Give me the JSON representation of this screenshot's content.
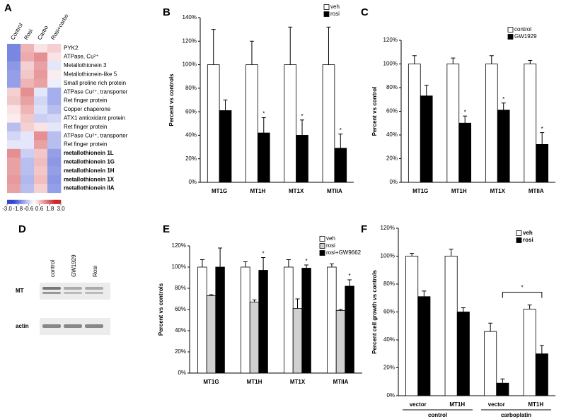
{
  "chart_data": [
    {
      "type": "heatmap",
      "panel": "A",
      "columns": [
        "Control",
        "Rosi",
        "Carbo",
        "Rosi+carbo"
      ],
      "rows": [
        "PYK2",
        "ATPase, Cu²⁺",
        "Metallothionein 3",
        "Metallothionein-like 5",
        "Small proline rich protein",
        "ATPase Cu²⁺, transporter",
        "Ret finger protein",
        "Copper chaperone",
        "ATX1 antioxidant protein",
        "Ret finger protein",
        "ATPase Cu²⁺, transporter",
        "Ret finger protein",
        "metallothionein 1L",
        "metallothionein 1G",
        "metallothionein 1H",
        "metallothionein 1X",
        "metallothionein IIA"
      ],
      "values": [
        [
          -1.5,
          0.8,
          0.3,
          0.5
        ],
        [
          -1.5,
          0.9,
          1.2,
          0.3
        ],
        [
          -1.3,
          0.5,
          1.0,
          -0.3
        ],
        [
          -1.2,
          0.6,
          1.1,
          0.2
        ],
        [
          -1.2,
          0.8,
          1.0,
          -0.2
        ],
        [
          0.5,
          1.2,
          -0.3,
          -1.0
        ],
        [
          0.6,
          1.0,
          -0.5,
          -1.0
        ],
        [
          0.3,
          0.8,
          -0.4,
          -0.8
        ],
        [
          0.2,
          0.6,
          -0.6,
          -0.5
        ],
        [
          -0.8,
          0.5,
          0.3,
          -0.3
        ],
        [
          -0.5,
          -0.3,
          1.2,
          -0.8
        ],
        [
          -0.3,
          -0.3,
          1.0,
          -0.8
        ],
        [
          1.2,
          -0.6,
          0.6,
          -1.2
        ],
        [
          1.0,
          -0.8,
          0.7,
          -1.3
        ],
        [
          1.0,
          -0.8,
          0.6,
          -1.2
        ],
        [
          1.1,
          -0.9,
          0.7,
          -1.3
        ],
        [
          1.0,
          -0.8,
          0.5,
          -1.2
        ]
      ],
      "zlim": [
        -3,
        3
      ],
      "zticks": [
        {
          "value": -3,
          "label": "-3.0"
        },
        {
          "value": -1.8,
          "label": "-1.8"
        },
        -0.6,
        0.6,
        1.8,
        {
          "value": 3,
          "label": "3.0"
        }
      ]
    },
    {
      "type": "bar",
      "panel": "B",
      "categories": [
        "MT1G",
        "MT1H",
        "MT1X",
        "MTIIA"
      ],
      "ylabel": "Percent vs controls",
      "ylim": [
        0,
        140
      ],
      "yticks": [
        {
          "value": 0,
          "label": "0%"
        },
        {
          "value": 20,
          "label": "20%"
        },
        {
          "value": 40,
          "label": "40%"
        },
        {
          "value": 60,
          "label": "60%"
        },
        {
          "value": 80,
          "label": "80%"
        },
        {
          "value": 100,
          "label": "100%"
        },
        {
          "value": 120,
          "label": "120%"
        },
        {
          "value": 140,
          "label": "140%"
        }
      ],
      "legend": "upper right",
      "series": [
        {
          "name": "veh",
          "color": "#ffffff",
          "values": [
            100,
            100,
            100,
            100
          ],
          "errors": [
            30,
            20,
            32,
            32
          ],
          "stars": [
            null,
            null,
            null,
            null
          ]
        },
        {
          "name": "rosi",
          "color": "#000000",
          "values": [
            61,
            42,
            40,
            29
          ],
          "errors": [
            9,
            13,
            13,
            12
          ],
          "stars": [
            null,
            "*",
            "*",
            "*"
          ]
        }
      ]
    },
    {
      "type": "bar",
      "panel": "C",
      "categories": [
        "MT1G",
        "MT1H",
        "MT1X",
        "MTIIA"
      ],
      "ylabel": "Percent vs control",
      "ylim": [
        0,
        120
      ],
      "yticks": [
        {
          "value": 0,
          "label": "0%"
        },
        {
          "value": 20,
          "label": "20%"
        },
        {
          "value": 40,
          "label": "40%"
        },
        {
          "value": 60,
          "label": "60%"
        },
        {
          "value": 80,
          "label": "80%"
        },
        {
          "value": 100,
          "label": "100%"
        },
        {
          "value": 120,
          "label": "120%"
        }
      ],
      "legend": "upper right",
      "series": [
        {
          "name": "control",
          "color": "#ffffff",
          "values": [
            100,
            100,
            100,
            100
          ],
          "errors": [
            7,
            5,
            7,
            3
          ],
          "stars": [
            null,
            null,
            null,
            null
          ]
        },
        {
          "name": "GW1929",
          "color": "#000000",
          "values": [
            73,
            50,
            61,
            32
          ],
          "errors": [
            9,
            6,
            6,
            10
          ],
          "stars": [
            null,
            "*",
            "*",
            "*"
          ]
        }
      ]
    },
    {
      "type": "blot",
      "panel": "D",
      "lanes": [
        "control",
        "GW1929",
        "Rosi"
      ],
      "rows": [
        "MT",
        "actin"
      ]
    },
    {
      "type": "bar",
      "panel": "E",
      "categories": [
        "MT1G",
        "MT1H",
        "MT1X",
        "MTIIA"
      ],
      "ylabel": "Percent vs controls",
      "ylim": [
        0,
        120
      ],
      "yticks": [
        {
          "value": 0,
          "label": "0%"
        },
        {
          "value": 20,
          "label": "20%"
        },
        {
          "value": 40,
          "label": "40%"
        },
        {
          "value": 60,
          "label": "60%"
        },
        {
          "value": 80,
          "label": "80%"
        },
        {
          "value": 100,
          "label": "100%"
        },
        {
          "value": 120,
          "label": "120%"
        }
      ],
      "legend": "upper right",
      "series": [
        {
          "name": "veh",
          "color": "#ffffff",
          "values": [
            100,
            100,
            100,
            100
          ],
          "errors": [
            7,
            5,
            7,
            3
          ],
          "stars": [
            null,
            null,
            null,
            null
          ]
        },
        {
          "name": "rosi",
          "color": "#d0d0d0",
          "values": [
            73,
            67,
            61,
            59
          ],
          "errors": [
            1,
            2,
            9,
            1
          ],
          "stars": [
            null,
            null,
            null,
            null
          ]
        },
        {
          "name": "rosi+GW9662",
          "color": "#000000",
          "values": [
            100,
            97,
            99,
            82
          ],
          "errors": [
            18,
            12,
            3,
            6
          ],
          "stars": [
            null,
            "*",
            "*",
            "*"
          ]
        }
      ]
    },
    {
      "type": "bar",
      "panel": "F",
      "categories": [
        "vector",
        "MT1H",
        "vector",
        "MT1H"
      ],
      "group_labels": [
        "control",
        "carboplatin"
      ],
      "ylabel": "Percent cell growth vs controls",
      "ylim": [
        0,
        120
      ],
      "yticks": [
        {
          "value": 0,
          "label": "0%"
        },
        {
          "value": 20,
          "label": "20%"
        },
        {
          "value": 40,
          "label": "40%"
        },
        {
          "value": 60,
          "label": "60%"
        },
        {
          "value": 80,
          "label": "80%"
        },
        {
          "value": 100,
          "label": "100%"
        },
        {
          "value": 120,
          "label": "120%"
        }
      ],
      "legend": "upper right",
      "bracket_label": "*",
      "series": [
        {
          "name": "veh",
          "color": "#ffffff",
          "values": [
            100,
            100,
            46,
            62
          ],
          "errors": [
            2,
            5,
            6,
            3
          ],
          "stars": [
            null,
            null,
            null,
            null
          ]
        },
        {
          "name": "rosi",
          "color": "#000000",
          "values": [
            71,
            60,
            9,
            30
          ],
          "errors": [
            4,
            3,
            3,
            6
          ],
          "stars": [
            null,
            null,
            null,
            null
          ]
        }
      ]
    }
  ]
}
